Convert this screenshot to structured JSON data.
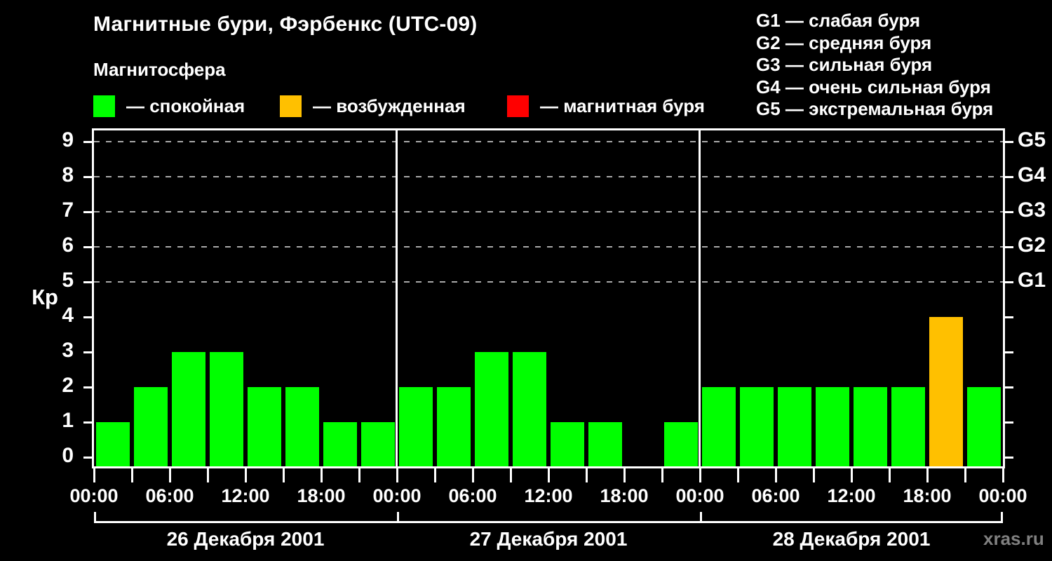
{
  "chart_data": {
    "type": "bar",
    "title": "Магнитные бури, Фэрбенкс (UTC-09)",
    "subtitle": "Магнитосфера",
    "legend": [
      {
        "label": "— спокойная",
        "color": "#00ff00"
      },
      {
        "label": "— возбужденная",
        "color": "#ffc000"
      },
      {
        "label": "— магнитная буря",
        "color": "#ff0000"
      }
    ],
    "g_legend": [
      "G1 — слабая буря",
      "G2 — средняя буря",
      "G3 — сильная буря",
      "G4 — очень сильная буря",
      "G5 — экстремальная буря"
    ],
    "ylabel": "Кр",
    "ylim": [
      0,
      9
    ],
    "yticks": [
      0,
      1,
      2,
      3,
      4,
      5,
      6,
      7,
      8,
      9
    ],
    "grid_levels": [
      5,
      6,
      7,
      8,
      9
    ],
    "right_axis_labels": [
      {
        "value": 5,
        "label": "G1"
      },
      {
        "value": 6,
        "label": "G2"
      },
      {
        "value": 7,
        "label": "G3"
      },
      {
        "value": 8,
        "label": "G4"
      },
      {
        "value": 9,
        "label": "G5"
      }
    ],
    "time_tick_labels": [
      "00:00",
      "06:00",
      "12:00",
      "18:00"
    ],
    "hours_per_bar": 3,
    "days": [
      {
        "date": "26 Декабря 2001",
        "values": [
          1,
          2,
          3,
          3,
          2,
          2,
          1,
          1
        ]
      },
      {
        "date": "27 Декабря 2001",
        "values": [
          2,
          2,
          3,
          3,
          1,
          1,
          null,
          1
        ]
      },
      {
        "date": "28 Декабря 2001",
        "values": [
          2,
          2,
          2,
          2,
          2,
          2,
          4,
          2
        ]
      }
    ],
    "colors": {
      "quiet": "#00ff00",
      "excited": "#ffc000",
      "storm": "#ff0000"
    },
    "color_rule": {
      "excited_min_kp": 4,
      "storm_min_kp": 5
    },
    "grid_color": "#aaaaaa",
    "axis_color": "#ffffff",
    "legend_position": "top"
  },
  "watermark": "xras.ru"
}
